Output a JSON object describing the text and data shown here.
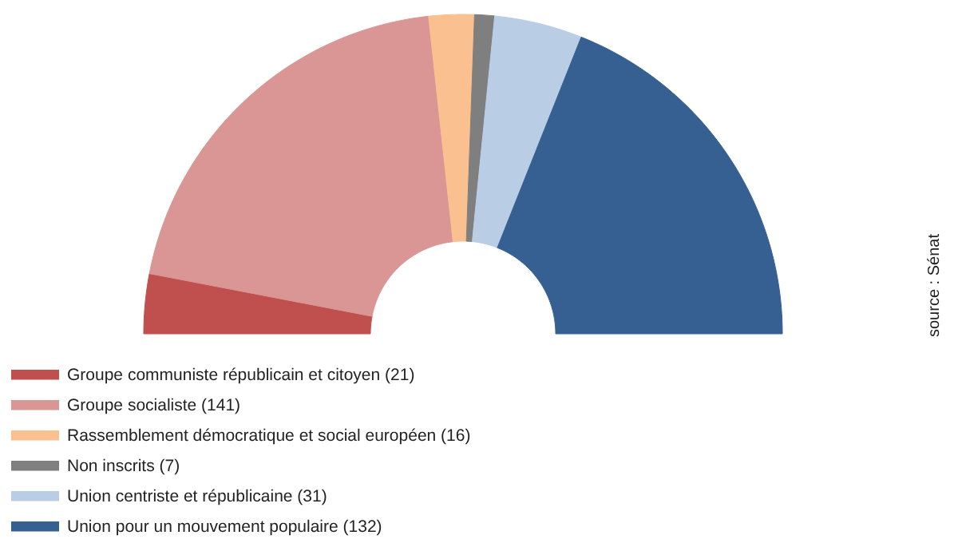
{
  "chart_data": {
    "type": "donut",
    "categories": [
      "Groupe communiste républicain et citoyen (21)",
      "Groupe socialiste (141)",
      "Rassemblement démocratique et social européen (16)",
      "Non inscrits (7)",
      "Union centriste et républicaine (31)",
      "Union pour un mouvement populaire (132)"
    ],
    "values": [
      21,
      141,
      16,
      7,
      31,
      132
    ],
    "colors": [
      "#c0504d",
      "#d99694",
      "#fac090",
      "#7f7f7f",
      "#b9cde5",
      "#366092"
    ],
    "legend": "bottom",
    "annotations": [
      "source : Sénat"
    ]
  }
}
